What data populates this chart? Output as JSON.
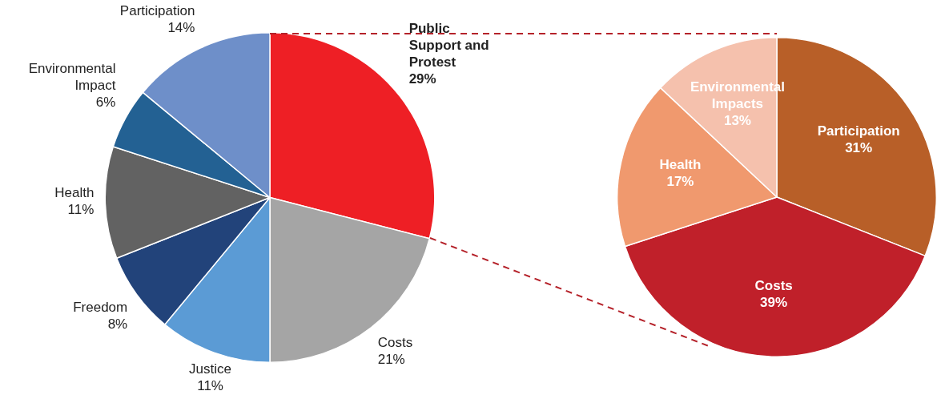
{
  "chart_data": [
    {
      "type": "pie",
      "categories": [
        "Public Support and Protest",
        "Costs",
        "Justice",
        "Freedom",
        "Health",
        "Environmental Impact",
        "Participation"
      ],
      "values": [
        29,
        21,
        11,
        8,
        11,
        6,
        14
      ],
      "colors": [
        "#ee1f25",
        "#a5a5a5",
        "#5b9bd5",
        "#22437a",
        "#626262",
        "#236193",
        "#6e8fc9"
      ],
      "value_labels": [
        "29%",
        "21%",
        "11%",
        "8%",
        "11%",
        "6%",
        "14%"
      ]
    },
    {
      "type": "pie",
      "categories": [
        "Participation",
        "Costs",
        "Health",
        "Environmental Impacts"
      ],
      "values": [
        31,
        39,
        17,
        13
      ],
      "colors": [
        "#b85f28",
        "#c0202a",
        "#f0996e",
        "#f5c1ad"
      ],
      "value_labels": [
        "31%",
        "39%",
        "17%",
        "13%"
      ]
    }
  ]
}
